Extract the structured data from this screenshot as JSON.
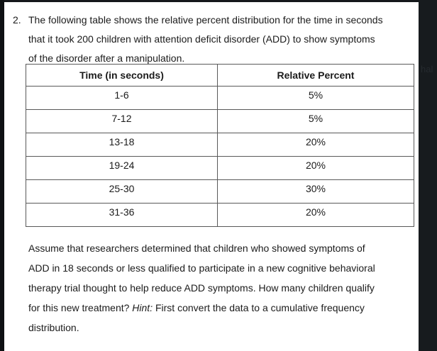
{
  "page": {
    "question_number": "2.",
    "intro_lines": {
      "line1": "The following table shows the relative percent distribution for the time in seconds",
      "line2": "that it took 200 children with attention deficit disorder (ADD) to show symptoms",
      "line3": "of the disorder after a manipulation."
    },
    "table": {
      "headers": {
        "time": "Time (in seconds)",
        "percent": "Relative Percent"
      },
      "rows": [
        {
          "time": "1-6",
          "percent": "5%"
        },
        {
          "time": "7-12",
          "percent": "5%"
        },
        {
          "time": "13-18",
          "percent": "20%"
        },
        {
          "time": "19-24",
          "percent": "20%"
        },
        {
          "time": "25-30",
          "percent": "30%"
        },
        {
          "time": "31-36",
          "percent": "20%"
        }
      ]
    },
    "paragraph": {
      "line1": "Assume that researchers determined that children who showed symptoms of",
      "line2": "ADD in 18 seconds or less qualified to participate in a new cognitive behavioral",
      "line3": "therapy trial thought to help reduce ADD symptoms. How many children qualify",
      "line4_pre": "for this new treatment? ",
      "hint_label": "Hint:",
      "line4_post": " First convert the data to a cumulative frequency",
      "line5": "distribution."
    }
  },
  "side_panel": {
    "faint_text": "hal"
  },
  "colors": {
    "page_background": "#ffffff",
    "text": "#1b1b1b",
    "table_border": "#595959",
    "left_strip": "#0e1113",
    "top_bar": "#15181b",
    "right_panel": "#171b1e"
  }
}
